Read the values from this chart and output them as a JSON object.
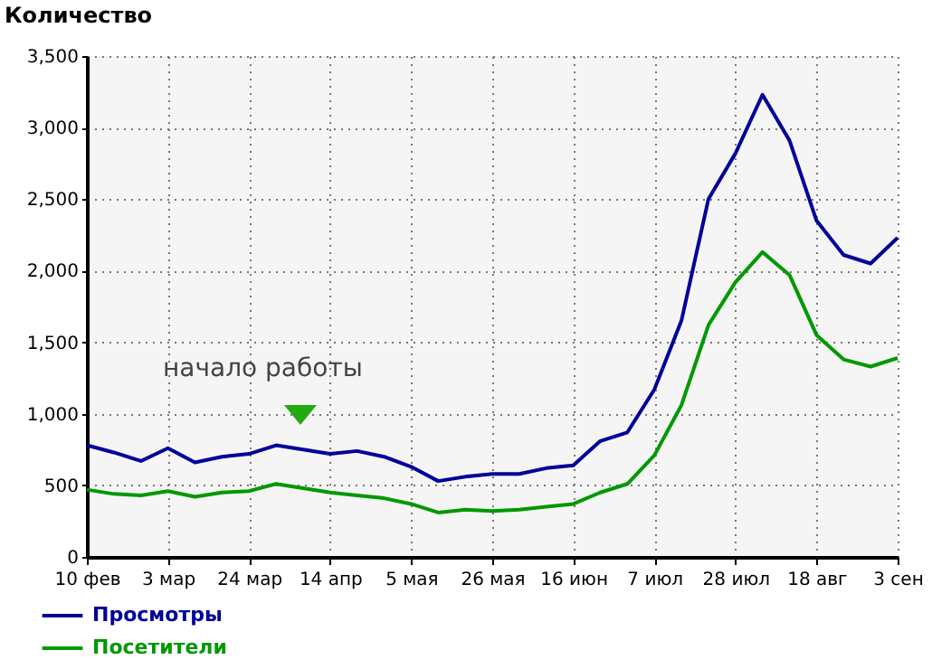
{
  "chart_data": {
    "type": "line",
    "ylabel": "Количество",
    "categories": [
      "10 фев",
      null,
      null,
      "3 мар",
      null,
      null,
      "24 мар",
      null,
      null,
      "14 апр",
      null,
      null,
      "5 мая",
      null,
      null,
      "26 мая",
      null,
      null,
      "16 июн",
      null,
      null,
      "7 июл",
      null,
      null,
      "28 июл",
      null,
      null,
      "18 авг",
      null,
      null,
      "3 сен"
    ],
    "series": [
      {
        "name": "Просмотры",
        "color": "#000099",
        "values": [
          780,
          730,
          670,
          760,
          660,
          700,
          720,
          780,
          750,
          720,
          740,
          700,
          630,
          530,
          560,
          580,
          580,
          620,
          640,
          810,
          870,
          1170,
          1650,
          2500,
          2820,
          3230,
          2910,
          2350,
          2110,
          2050,
          2230
        ]
      },
      {
        "name": "Посетители",
        "color": "#009900",
        "values": [
          470,
          440,
          430,
          460,
          420,
          450,
          460,
          510,
          480,
          450,
          430,
          410,
          370,
          310,
          330,
          320,
          330,
          350,
          370,
          450,
          510,
          710,
          1060,
          1620,
          1920,
          2130,
          1970,
          1550,
          1380,
          1330,
          1390
        ]
      }
    ],
    "ylim": [
      0,
      3500
    ],
    "yticks": [
      0,
      {
        "value": 500,
        "label": "500"
      },
      {
        "value": 1000,
        "label": "1,000"
      },
      {
        "value": 1500,
        "label": "1,500"
      },
      {
        "value": 2000,
        "label": "2,000"
      },
      {
        "value": 2500,
        "label": "2,500"
      },
      {
        "value": 3000,
        "label": "3,000"
      },
      {
        "value": 3500,
        "label": "3,500"
      }
    ],
    "grid": true,
    "legend": "bottom left",
    "line_style": "solid",
    "marker": "none",
    "annotations": [
      "начало работы"
    ]
  }
}
